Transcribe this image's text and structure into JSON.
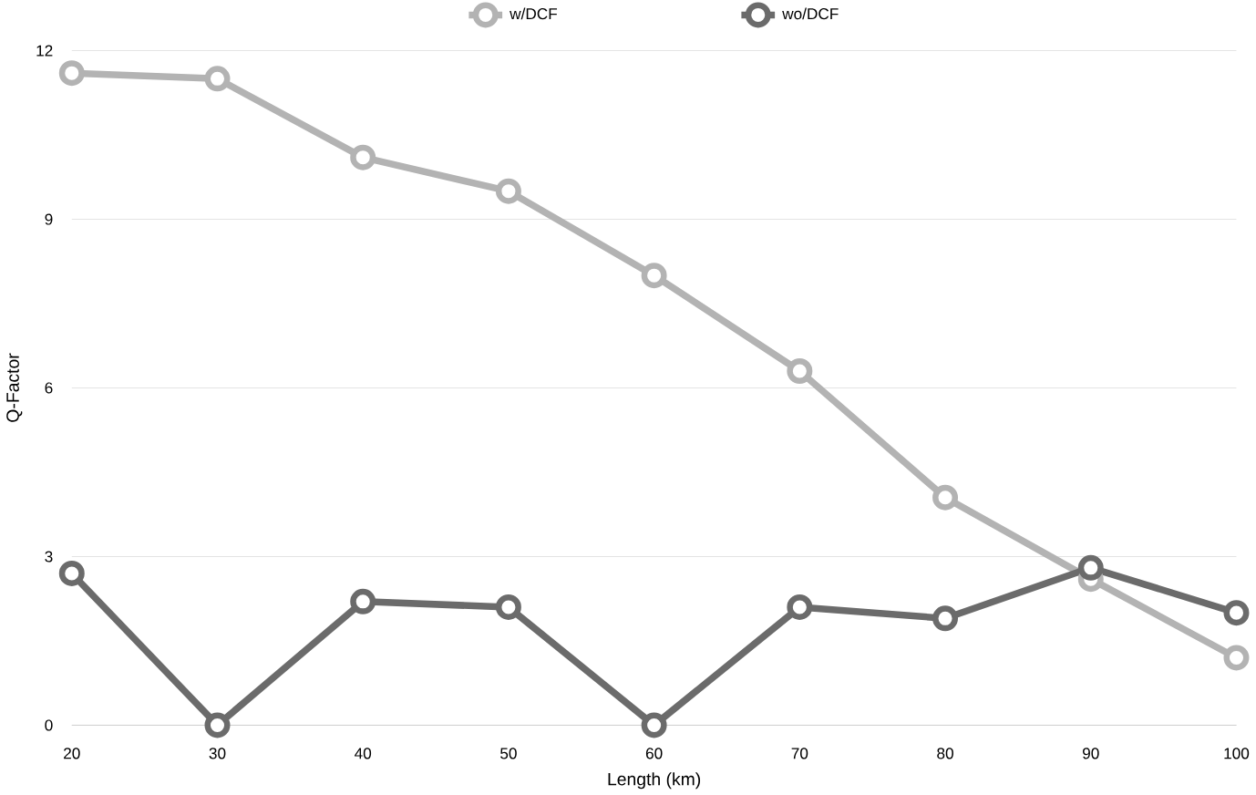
{
  "chart_data": {
    "type": "line",
    "xlabel": "Length (km)",
    "ylabel": "Q-Factor",
    "x": [
      20,
      30,
      40,
      50,
      60,
      70,
      80,
      90,
      100
    ],
    "series": [
      {
        "name": "w/DCF",
        "color": "#b3b3b3",
        "values": [
          11.6,
          11.5,
          10.1,
          9.5,
          8.0,
          6.3,
          4.05,
          2.6,
          1.2
        ]
      },
      {
        "name": "wo/DCF",
        "color": "#6b6b6b",
        "values": [
          2.7,
          0,
          2.2,
          2.1,
          0,
          2.1,
          1.9,
          2.8,
          2.0
        ]
      }
    ],
    "xlim": [
      20,
      100
    ],
    "xticks": [
      20,
      30,
      40,
      50,
      60,
      70,
      80,
      90,
      100
    ],
    "ylim": [
      0,
      12
    ],
    "yticks": [
      0,
      3,
      6,
      9,
      12
    ],
    "grid": "y",
    "legend": "top",
    "marker": "circle",
    "line_style": "solid"
  }
}
